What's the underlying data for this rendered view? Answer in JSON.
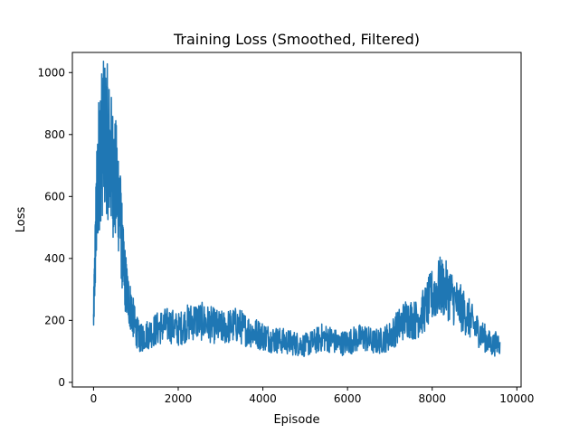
{
  "chart_data": {
    "type": "line",
    "title": "Training Loss (Smoothed, Filtered)",
    "xlabel": "Episode",
    "ylabel": "Loss",
    "xlim": [
      -500,
      10100
    ],
    "ylim": [
      -15,
      1065
    ],
    "xticks": [
      0,
      2000,
      4000,
      6000,
      8000,
      10000
    ],
    "xtick_labels": [
      "0",
      "2000",
      "4000",
      "6000",
      "8000",
      "10000"
    ],
    "yticks": [
      0,
      200,
      400,
      600,
      800,
      1000
    ],
    "ytick_labels": [
      "0",
      "200",
      "400",
      "600",
      "800",
      "1000"
    ],
    "grid": false,
    "legend": "none",
    "series": [
      {
        "color": "#1f77b4",
        "x": [
          0,
          60,
          120,
          200,
          300,
          400,
          500,
          600,
          700,
          800,
          900,
          1000,
          1100,
          1200,
          1400,
          1600,
          1800,
          2000,
          2200,
          2400,
          2600,
          2800,
          3000,
          3200,
          3400,
          3600,
          3800,
          4000,
          4200,
          4400,
          4600,
          4800,
          5000,
          5200,
          5400,
          5600,
          5800,
          6000,
          6200,
          6400,
          6600,
          6800,
          7000,
          7200,
          7400,
          7600,
          7800,
          8000,
          8200,
          8400,
          8600,
          8800,
          9000,
          9200,
          9400,
          9600
        ],
        "y": [
          200,
          520,
          700,
          780,
          800,
          720,
          660,
          600,
          380,
          280,
          230,
          170,
          140,
          150,
          165,
          180,
          185,
          170,
          190,
          200,
          195,
          185,
          175,
          180,
          185,
          170,
          160,
          150,
          140,
          135,
          130,
          125,
          120,
          130,
          145,
          140,
          125,
          130,
          140,
          145,
          130,
          135,
          150,
          180,
          210,
          200,
          230,
          280,
          310,
          290,
          250,
          220,
          180,
          150,
          120,
          130
        ]
      }
    ]
  }
}
